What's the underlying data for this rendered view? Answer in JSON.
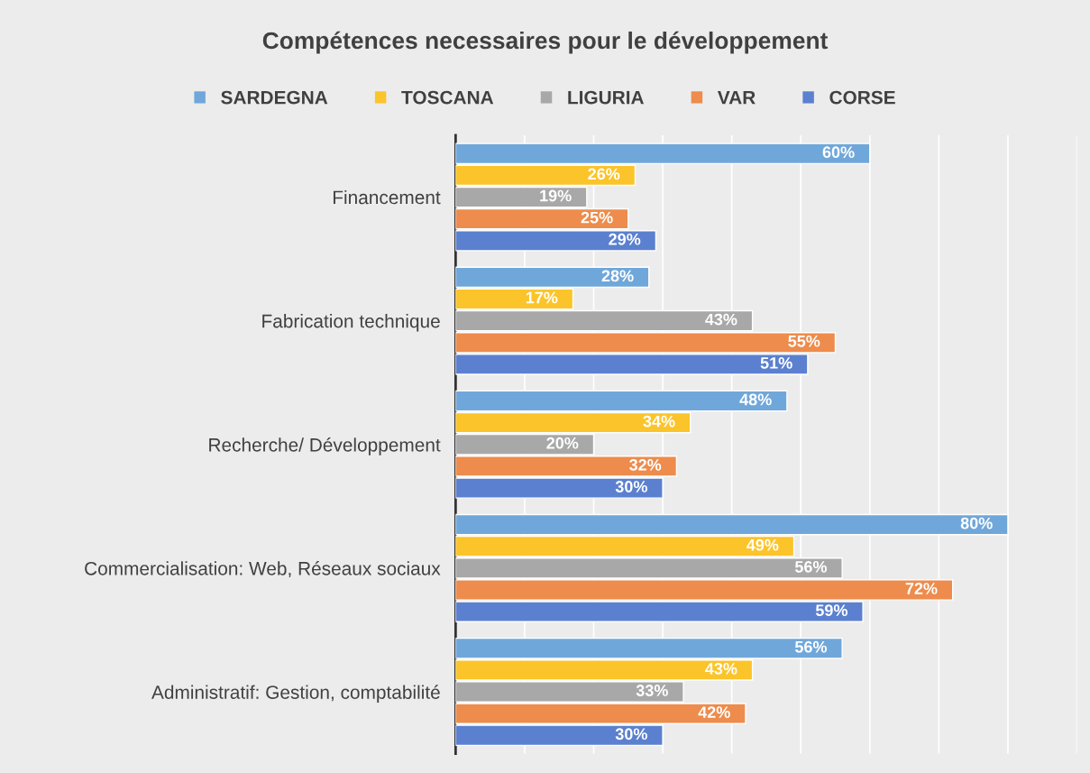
{
  "chart_data": {
    "type": "bar",
    "orientation": "horizontal",
    "title": "Compétences necessaires pour le développement",
    "categories": [
      "Financement",
      "Fabrication technique",
      "Recherche/ Développement",
      "Commercialisation: Web, Réseaux sociaux",
      "Administratif: Gestion, comptabilité"
    ],
    "series": [
      {
        "name": "SARDEGNA",
        "color": "#70a7da",
        "values": [
          60,
          28,
          48,
          80,
          56
        ],
        "value_labels": [
          "60%",
          "28%",
          "48%",
          "80%",
          "56%"
        ]
      },
      {
        "name": "TOSCANA",
        "color": "#fbc42a",
        "values": [
          26,
          17,
          34,
          49,
          43
        ],
        "value_labels": [
          "26%",
          "17%",
          "34%",
          "49%",
          "43%"
        ]
      },
      {
        "name": "LIGURIA",
        "color": "#a8a8a8",
        "values": [
          19,
          43,
          20,
          56,
          33
        ],
        "value_labels": [
          "19%",
          "43%",
          "20%",
          "56%",
          "33%"
        ]
      },
      {
        "name": "VAR",
        "color": "#ed8c4c",
        "values": [
          25,
          55,
          32,
          72,
          42
        ],
        "value_labels": [
          "25%",
          "55%",
          "32%",
          "72%",
          "42%"
        ]
      },
      {
        "name": "CORSE",
        "color": "#5b80cf",
        "values": [
          29,
          51,
          30,
          59,
          30
        ],
        "value_labels": [
          "29%",
          "51%",
          "30%",
          "59%",
          "30%"
        ]
      }
    ],
    "xlim": [
      0,
      90
    ],
    "xticks": [
      {
        "value": 0,
        "label": null
      },
      {
        "value": 10,
        "label": null
      },
      {
        "value": 20,
        "label": null
      },
      {
        "value": 30,
        "label": null
      },
      {
        "value": 40,
        "label": null
      },
      {
        "value": 50,
        "label": null
      },
      {
        "value": 60,
        "label": null
      },
      {
        "value": 70,
        "label": null
      },
      {
        "value": 80,
        "label": null
      },
      {
        "value": 90,
        "label": null
      }
    ],
    "tick_labels": "y",
    "grid": "x",
    "legend": "top"
  }
}
